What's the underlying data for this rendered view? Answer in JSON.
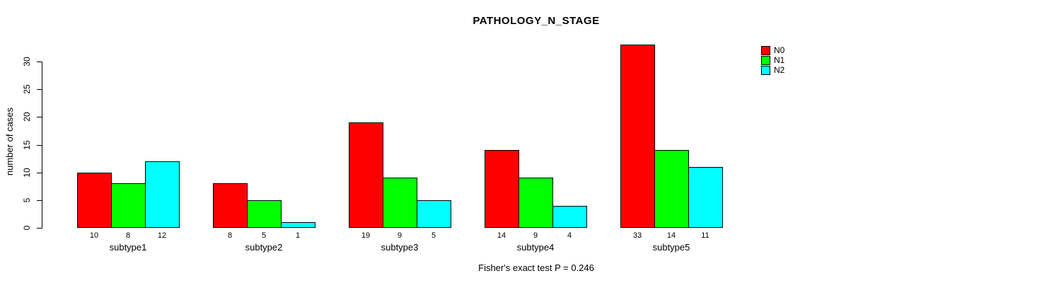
{
  "title": "PATHOLOGY_N_STAGE",
  "ylabel": "number of cases",
  "footer": "Fisher's exact test P = 0.246",
  "colors": {
    "background": "#FFFFFF",
    "axis": "#000000",
    "N0": "#FF0000",
    "N1": "#00FF00",
    "N2": "#00FFFF"
  },
  "legend": {
    "position": "top-right",
    "items": [
      {
        "label": "N0",
        "color": "#FF0000"
      },
      {
        "label": "N1",
        "color": "#00FF00"
      },
      {
        "label": "N2",
        "color": "#00FFFF"
      }
    ]
  },
  "chart_data": {
    "type": "bar",
    "title": "PATHOLOGY_N_STAGE",
    "xlabel": "",
    "ylabel": "number of cases",
    "annotation": "Fisher's exact test P = 0.246",
    "categories": [
      "subtype1",
      "subtype2",
      "subtype3",
      "subtype4",
      "subtype5"
    ],
    "series": [
      {
        "name": "N0",
        "color": "#FF0000",
        "values": [
          10,
          8,
          19,
          14,
          33
        ]
      },
      {
        "name": "N1",
        "color": "#00FF00",
        "values": [
          8,
          5,
          9,
          9,
          14
        ]
      },
      {
        "name": "N2",
        "color": "#00FFFF",
        "values": [
          12,
          1,
          5,
          4,
          11
        ]
      }
    ],
    "yticks": [
      0,
      5,
      10,
      15,
      20,
      25,
      30
    ],
    "ylim": [
      0,
      33
    ],
    "grid": false,
    "bar_values_shown": true,
    "legend_position": "top-right"
  }
}
